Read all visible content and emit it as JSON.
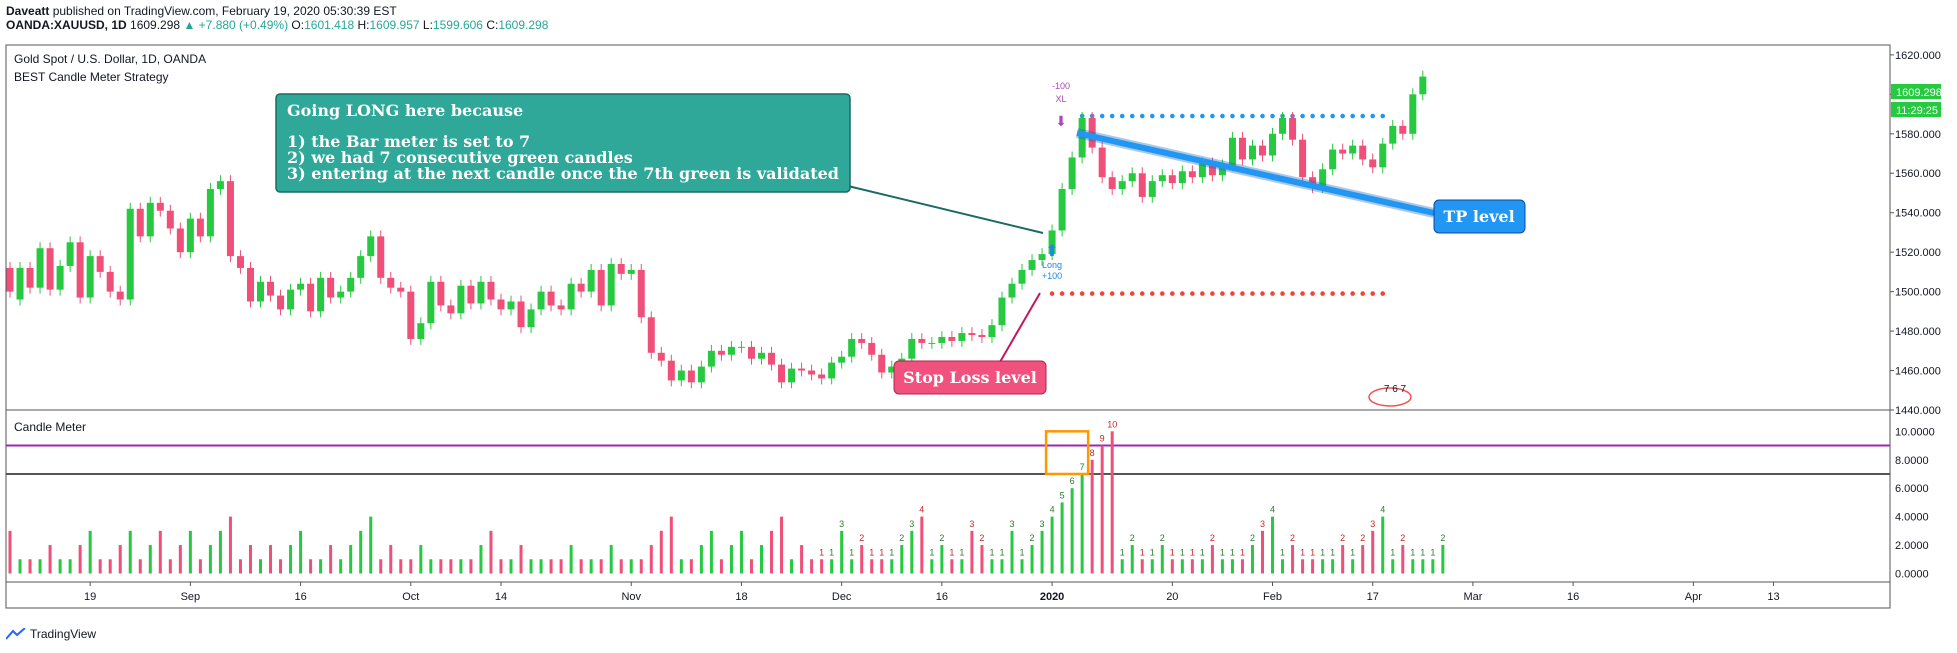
{
  "header": {
    "author": "Daveatt",
    "published_text": "published on TradingView.com, February 19, 2020 05:30:39 EST",
    "symbol": "OANDA:XAUUSD, 1D",
    "last": "1609.298",
    "change": "+7.880 (+0.49%)",
    "o_label": "O:",
    "o_val": "1601.418",
    "h_label": "H:",
    "h_val": "1609.957",
    "l_label": "L:",
    "l_val": "1599.606",
    "c_label": "C:",
    "c_val": "1609.298"
  },
  "main_pane": {
    "title": "Gold Spot / U.S. Dollar, 1D, OANDA",
    "strategy": "BEST Candle Meter Strategy",
    "price_badge": "1609.298",
    "time_badge": "11:29:25"
  },
  "sub_pane": {
    "title": "Candle Meter",
    "ticks": [
      "10.0000",
      "8.0000",
      "6.0000",
      "4.0000",
      "2.0000",
      "0.0000"
    ]
  },
  "annotations": {
    "long_box": {
      "line1": "Going LONG here because",
      "line2": "1) the Bar meter is set to 7",
      "line3": "2) we had 7 consecutive green candles",
      "line4": "3) entering at the next candle once the 7th green is validated"
    },
    "tp_label": "TP level",
    "sl_label": "Stop Loss level",
    "long_tag": "Long",
    "long_val": "+100",
    "xl_top": "-100",
    "xl_tag": "XL",
    "mini_counter": "7 6 7"
  },
  "footer": {
    "brand": "TradingView"
  },
  "colors": {
    "up": "#26c940",
    "down": "#ef4f78",
    "teal_box": "#2fa89a",
    "tp_blue": "#2196f3",
    "sl_red": "#f0517d",
    "purple": "#9c27b0"
  },
  "chart_data": [
    {
      "type": "candlestick",
      "title": "Gold Spot / U.S. Dollar, 1D, OANDA",
      "xlabel": "",
      "ylabel": "",
      "ylim": [
        1440,
        1625
      ],
      "y_ticks": [
        1440,
        1460,
        1480,
        1500,
        1520,
        1540,
        1560,
        1580,
        1600,
        1620
      ],
      "y_tick_labels": [
        "1440.000",
        "1460.000",
        "1480.000",
        "1500.000",
        "1520.000",
        "1540.000",
        "1560.000",
        "1580.000",
        "1600.000",
        "1620.000"
      ],
      "x_tick_labels": [
        "19",
        "Sep",
        "16",
        "Oct",
        "14",
        "Nov",
        "18",
        "Dec",
        "16",
        "2020",
        "20",
        "Feb",
        "17",
        "Mar",
        "16",
        "Apr",
        "13"
      ],
      "x_tick_index": [
        8,
        18,
        29,
        40,
        49,
        62,
        73,
        83,
        93,
        104,
        116,
        126,
        136,
        146,
        156,
        168,
        176
      ],
      "tp_level": 1589,
      "sl_level": 1499,
      "candles": [
        [
          1512,
          1500
        ],
        [
          1496,
          1512
        ],
        [
          1512,
          1502
        ],
        [
          1502,
          1522
        ],
        [
          1522,
          1501
        ],
        [
          1501,
          1513
        ],
        [
          1513,
          1525
        ],
        [
          1525,
          1497
        ],
        [
          1497,
          1518
        ],
        [
          1518,
          1510
        ],
        [
          1510,
          1500
        ],
        [
          1500,
          1496
        ],
        [
          1496,
          1542
        ],
        [
          1542,
          1528
        ],
        [
          1528,
          1545
        ],
        [
          1545,
          1541
        ],
        [
          1541,
          1532
        ],
        [
          1532,
          1520
        ],
        [
          1520,
          1537
        ],
        [
          1537,
          1528
        ],
        [
          1528,
          1552
        ],
        [
          1552,
          1556
        ],
        [
          1556,
          1518
        ],
        [
          1518,
          1512
        ],
        [
          1512,
          1495
        ],
        [
          1495,
          1505
        ],
        [
          1505,
          1498
        ],
        [
          1498,
          1491
        ],
        [
          1491,
          1501
        ],
        [
          1501,
          1504
        ],
        [
          1504,
          1490
        ],
        [
          1490,
          1507
        ],
        [
          1507,
          1497
        ],
        [
          1497,
          1500
        ],
        [
          1500,
          1507
        ],
        [
          1507,
          1518
        ],
        [
          1518,
          1528
        ],
        [
          1528,
          1507
        ],
        [
          1507,
          1502
        ],
        [
          1502,
          1500
        ],
        [
          1500,
          1476
        ],
        [
          1476,
          1484
        ],
        [
          1484,
          1505
        ],
        [
          1505,
          1493
        ],
        [
          1493,
          1489
        ],
        [
          1489,
          1503
        ],
        [
          1503,
          1494
        ],
        [
          1494,
          1505
        ],
        [
          1505,
          1496
        ],
        [
          1496,
          1491
        ],
        [
          1491,
          1495
        ],
        [
          1495,
          1482
        ],
        [
          1482,
          1491
        ],
        [
          1491,
          1500
        ],
        [
          1500,
          1493
        ],
        [
          1493,
          1491
        ],
        [
          1491,
          1504
        ],
        [
          1504,
          1500
        ],
        [
          1500,
          1511
        ],
        [
          1511,
          1493
        ],
        [
          1493,
          1514
        ],
        [
          1514,
          1509
        ],
        [
          1509,
          1511
        ],
        [
          1511,
          1487
        ],
        [
          1487,
          1469
        ],
        [
          1469,
          1465
        ],
        [
          1465,
          1455
        ],
        [
          1455,
          1460
        ],
        [
          1460,
          1454
        ],
        [
          1454,
          1462
        ],
        [
          1462,
          1470
        ],
        [
          1470,
          1468
        ],
        [
          1468,
          1472
        ],
        [
          1472,
          1472
        ],
        [
          1472,
          1466
        ],
        [
          1466,
          1469
        ],
        [
          1469,
          1463
        ],
        [
          1463,
          1454
        ],
        [
          1454,
          1461
        ],
        [
          1461,
          1460
        ],
        [
          1460,
          1458
        ],
        [
          1458,
          1456
        ],
        [
          1456,
          1464
        ],
        [
          1464,
          1467
        ],
        [
          1467,
          1476
        ],
        [
          1476,
          1474
        ],
        [
          1474,
          1468
        ],
        [
          1468,
          1459
        ],
        [
          1459,
          1462
        ],
        [
          1462,
          1466
        ],
        [
          1466,
          1476
        ],
        [
          1476,
          1474
        ],
        [
          1474,
          1474
        ],
        [
          1474,
          1477
        ],
        [
          1477,
          1475
        ],
        [
          1475,
          1479
        ],
        [
          1479,
          1478
        ],
        [
          1478,
          1477
        ],
        [
          1477,
          1483
        ],
        [
          1483,
          1497
        ],
        [
          1497,
          1504
        ],
        [
          1504,
          1511
        ],
        [
          1511,
          1516
        ],
        [
          1516,
          1519
        ],
        [
          1519,
          1531
        ],
        [
          1531,
          1552
        ],
        [
          1552,
          1568
        ],
        [
          1568,
          1588
        ],
        [
          1588,
          1573
        ],
        [
          1573,
          1558
        ],
        [
          1558,
          1552
        ],
        [
          1552,
          1556
        ],
        [
          1556,
          1560
        ],
        [
          1560,
          1548
        ],
        [
          1548,
          1556
        ],
        [
          1556,
          1559
        ],
        [
          1559,
          1555
        ],
        [
          1555,
          1561
        ],
        [
          1561,
          1558
        ],
        [
          1558,
          1565
        ],
        [
          1565,
          1559
        ],
        [
          1559,
          1564
        ],
        [
          1564,
          1578
        ],
        [
          1578,
          1567
        ],
        [
          1567,
          1574
        ],
        [
          1574,
          1569
        ],
        [
          1569,
          1580
        ],
        [
          1580,
          1588
        ],
        [
          1588,
          1577
        ],
        [
          1577,
          1558
        ],
        [
          1558,
          1553
        ],
        [
          1553,
          1562
        ],
        [
          1562,
          1572
        ],
        [
          1572,
          1570
        ],
        [
          1570,
          1574
        ],
        [
          1574,
          1567
        ],
        [
          1567,
          1563
        ],
        [
          1563,
          1575
        ],
        [
          1575,
          1584
        ],
        [
          1584,
          1580
        ],
        [
          1580,
          1600
        ],
        [
          1600,
          1609
        ]
      ]
    },
    {
      "type": "bar",
      "title": "Candle Meter",
      "xlabel": "",
      "ylabel": "",
      "ylim": [
        -0.6,
        11.5
      ],
      "y_ticks": [
        0,
        2,
        4,
        6,
        8,
        10
      ],
      "hlines": [
        {
          "value": 9,
          "color": "#9c27b0"
        },
        {
          "value": 7,
          "color": "#555555"
        }
      ],
      "values": [
        3,
        1,
        1,
        1,
        2,
        1,
        1,
        2,
        3,
        1,
        1,
        2,
        3,
        1,
        2,
        3,
        1,
        2,
        3,
        1,
        2,
        3,
        4,
        1,
        2,
        1,
        2,
        1,
        2,
        3,
        1,
        1,
        2,
        1,
        2,
        3,
        4,
        1,
        2,
        1,
        1,
        2,
        1,
        1,
        1,
        1,
        1,
        2,
        3,
        1,
        1,
        2,
        1,
        1,
        1,
        1,
        2,
        1,
        1,
        1,
        2,
        1,
        1,
        1,
        2,
        3,
        4,
        1,
        1,
        2,
        3,
        1,
        2,
        3,
        1,
        2,
        3,
        4,
        1,
        2,
        1,
        1,
        1,
        3,
        1,
        2,
        1,
        1,
        1,
        2,
        3,
        4,
        1,
        2,
        1,
        1,
        3,
        2,
        1,
        1,
        3,
        1,
        2,
        3,
        4,
        5,
        6,
        7,
        8,
        9,
        10,
        1,
        2,
        1,
        1,
        2,
        1,
        1,
        1,
        1,
        2,
        1,
        1,
        1,
        2,
        3,
        4,
        1,
        2,
        1,
        1,
        1,
        1,
        2,
        1,
        2,
        3,
        4,
        1,
        2,
        1,
        1,
        1,
        2
      ],
      "colors_by_direction": "green=up candle, red=down candle",
      "highlight_box": [
        7,
        10
      ]
    }
  ]
}
